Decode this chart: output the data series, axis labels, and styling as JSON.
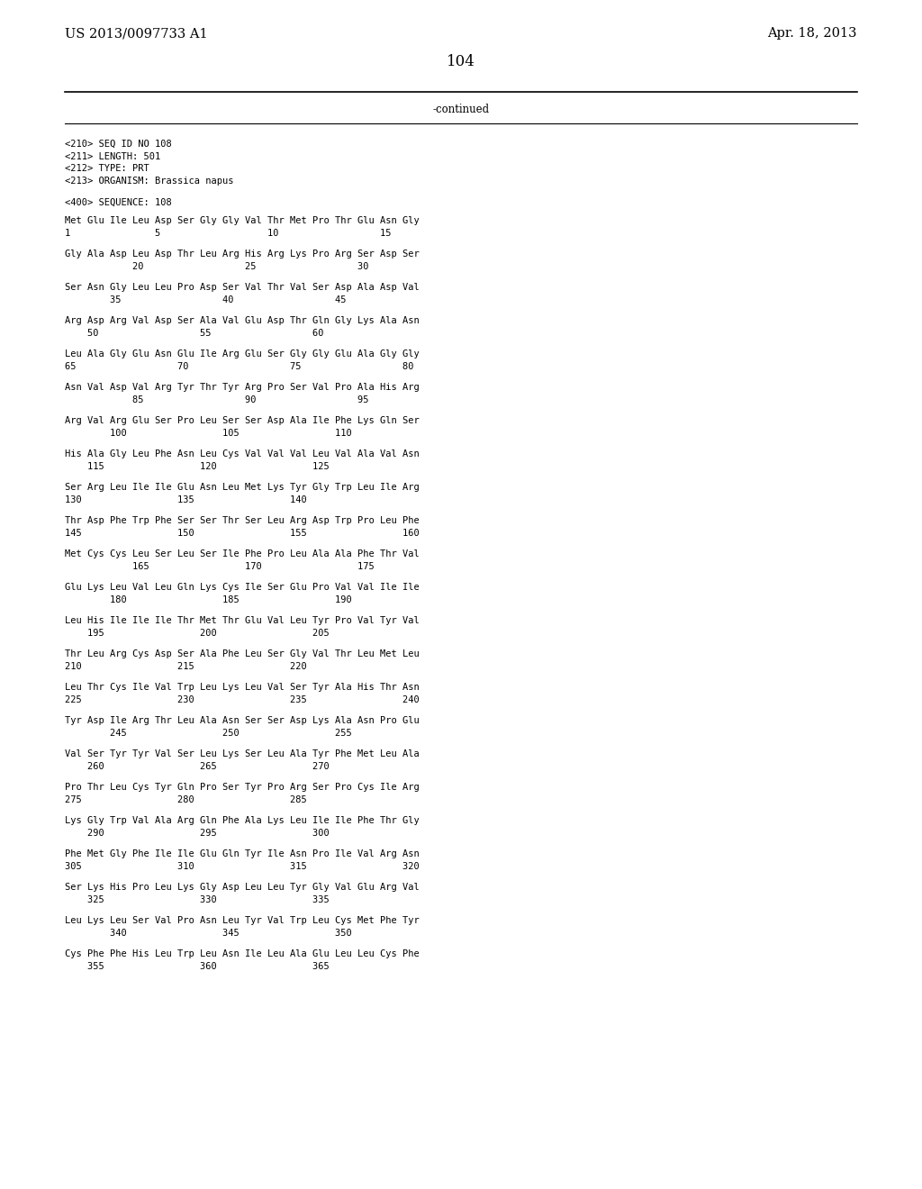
{
  "header_left": "US 2013/0097733 A1",
  "header_right": "Apr. 18, 2013",
  "page_number": "104",
  "continued": "-continued",
  "background_color": "#ffffff",
  "text_color": "#000000",
  "metadata": [
    "<210> SEQ ID NO 108",
    "<211> LENGTH: 501",
    "<212> TYPE: PRT",
    "<213> ORGANISM: Brassica napus"
  ],
  "sequence_header": "<400> SEQUENCE: 108",
  "seq_lines": [
    [
      "Met Glu Ile Leu Asp Ser Gly Gly Val Thr Met Pro Thr Glu Asn Gly",
      "1               5                   10                  15"
    ],
    [
      "Gly Ala Asp Leu Asp Thr Leu Arg His Arg Lys Pro Arg Ser Asp Ser",
      "            20                  25                  30"
    ],
    [
      "Ser Asn Gly Leu Leu Pro Asp Ser Val Thr Val Ser Asp Ala Asp Val",
      "        35                  40                  45"
    ],
    [
      "Arg Asp Arg Val Asp Ser Ala Val Glu Asp Thr Gln Gly Lys Ala Asn",
      "    50                  55                  60"
    ],
    [
      "Leu Ala Gly Glu Asn Glu Ile Arg Glu Ser Gly Gly Glu Ala Gly Gly",
      "65                  70                  75                  80"
    ],
    [
      "Asn Val Asp Val Arg Tyr Thr Tyr Arg Pro Ser Val Pro Ala His Arg",
      "            85                  90                  95"
    ],
    [
      "Arg Val Arg Glu Ser Pro Leu Ser Ser Asp Ala Ile Phe Lys Gln Ser",
      "        100                 105                 110"
    ],
    [
      "His Ala Gly Leu Phe Asn Leu Cys Val Val Val Leu Val Ala Val Asn",
      "    115                 120                 125"
    ],
    [
      "Ser Arg Leu Ile Ile Glu Asn Leu Met Lys Tyr Gly Trp Leu Ile Arg",
      "130                 135                 140"
    ],
    [
      "Thr Asp Phe Trp Phe Ser Ser Thr Ser Leu Arg Asp Trp Pro Leu Phe",
      "145                 150                 155                 160"
    ],
    [
      "Met Cys Cys Leu Ser Leu Ser Ile Phe Pro Leu Ala Ala Phe Thr Val",
      "            165                 170                 175"
    ],
    [
      "Glu Lys Leu Val Leu Gln Lys Cys Ile Ser Glu Pro Val Val Ile Ile",
      "        180                 185                 190"
    ],
    [
      "Leu His Ile Ile Ile Thr Met Thr Glu Val Leu Tyr Pro Val Tyr Val",
      "    195                 200                 205"
    ],
    [
      "Thr Leu Arg Cys Asp Ser Ala Phe Leu Ser Gly Val Thr Leu Met Leu",
      "210                 215                 220"
    ],
    [
      "Leu Thr Cys Ile Val Trp Leu Lys Leu Val Ser Tyr Ala His Thr Asn",
      "225                 230                 235                 240"
    ],
    [
      "Tyr Asp Ile Arg Thr Leu Ala Asn Ser Ser Asp Lys Ala Asn Pro Glu",
      "        245                 250                 255"
    ],
    [
      "Val Ser Tyr Tyr Val Ser Leu Lys Ser Leu Ala Tyr Phe Met Leu Ala",
      "    260                 265                 270"
    ],
    [
      "Pro Thr Leu Cys Tyr Gln Pro Ser Tyr Pro Arg Ser Pro Cys Ile Arg",
      "275                 280                 285"
    ],
    [
      "Lys Gly Trp Val Ala Arg Gln Phe Ala Lys Leu Ile Ile Phe Thr Gly",
      "    290                 295                 300"
    ],
    [
      "Phe Met Gly Phe Ile Ile Glu Gln Tyr Ile Asn Pro Ile Val Arg Asn",
      "305                 310                 315                 320"
    ],
    [
      "Ser Lys His Pro Leu Lys Gly Asp Leu Leu Tyr Gly Val Glu Arg Val",
      "    325                 330                 335"
    ],
    [
      "Leu Lys Leu Ser Val Pro Asn Leu Tyr Val Trp Leu Cys Met Phe Tyr",
      "        340                 345                 350"
    ],
    [
      "Cys Phe Phe His Leu Trp Leu Asn Ile Leu Ala Glu Leu Leu Cys Phe",
      "    355                 360                 365"
    ]
  ]
}
